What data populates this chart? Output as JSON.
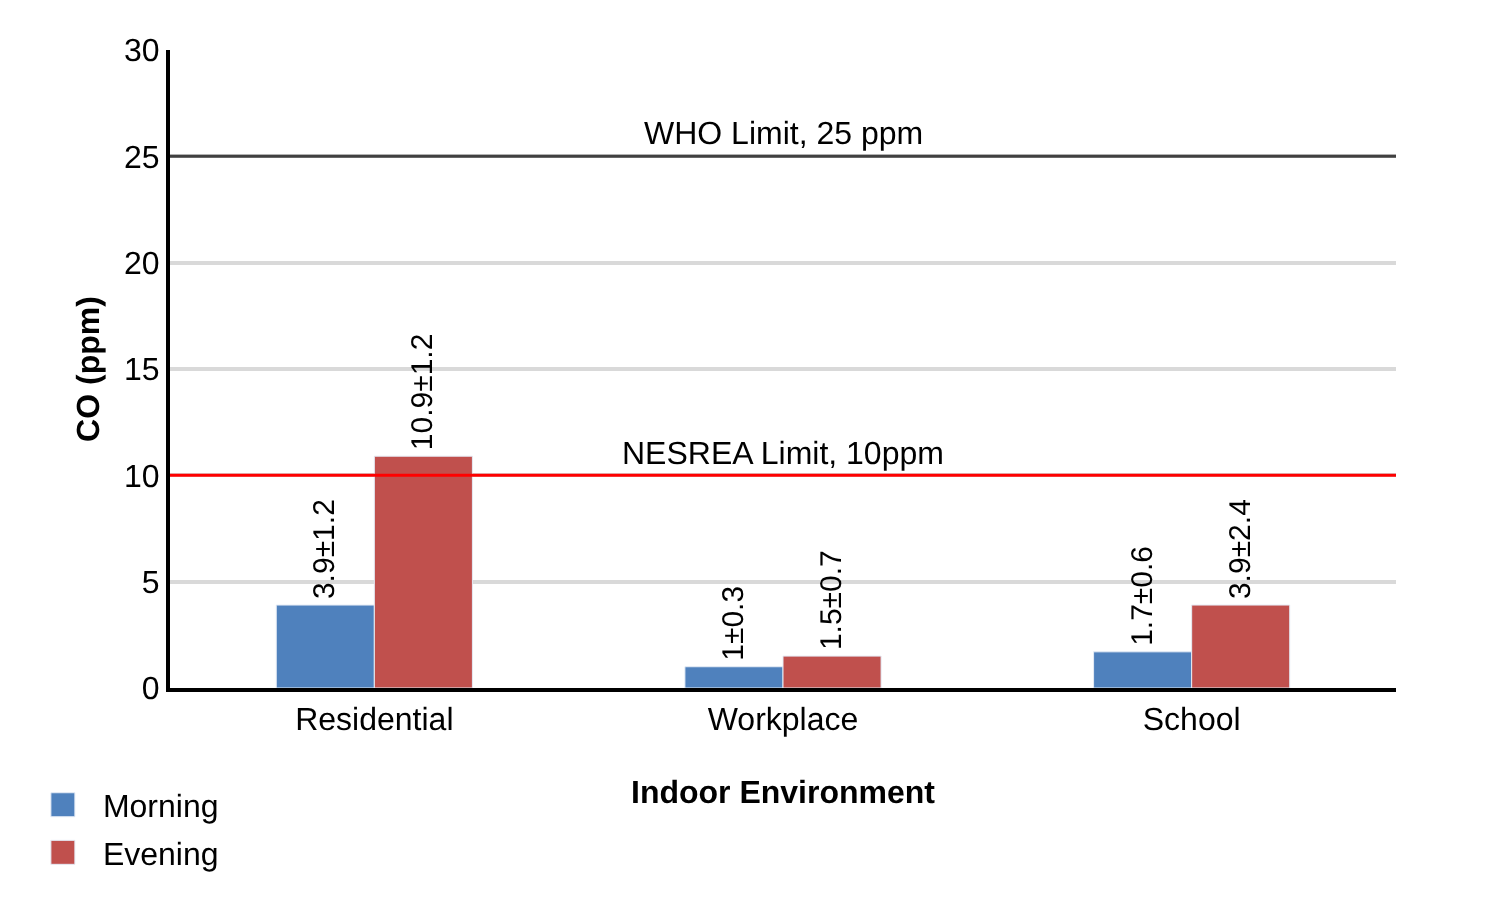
{
  "chart_data": {
    "type": "bar",
    "xlabel": "Indoor Environment",
    "ylabel": "CO (ppm)",
    "categories": [
      "Residential",
      "Workplace",
      "School"
    ],
    "series": [
      {
        "name": "Morning",
        "color": "#4f81bd",
        "values": [
          3.9,
          1,
          1.7
        ],
        "value_labels": [
          "3.9±1.2",
          "1±0.3",
          "1.7±0.6"
        ]
      },
      {
        "name": "Evening",
        "color": "#c0504d",
        "values": [
          10.9,
          1.5,
          3.9
        ],
        "value_labels": [
          "10.9±1.2",
          "1.5±0.7",
          "3.9±2.4"
        ]
      }
    ],
    "ylim": [
      0,
      30
    ],
    "yticks": [
      0,
      5,
      10,
      15,
      20,
      25,
      30
    ],
    "grid": "y",
    "legend": "bottom left",
    "ref_lines": [
      {
        "axis": "y",
        "value": 25,
        "label": "WHO Limit, 25 ppm",
        "color": "#404040"
      },
      {
        "axis": "y",
        "value": 10,
        "label": "NESREA Limit, 10ppm",
        "color": "#ff0000"
      }
    ]
  }
}
